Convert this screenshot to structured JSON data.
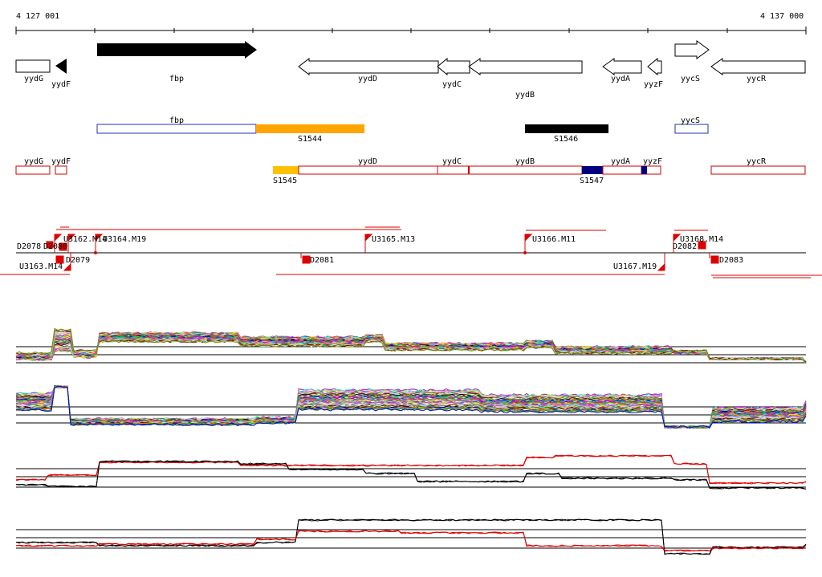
{
  "ruler": {
    "start_label": "4 127 001",
    "end_label": "4 137 000"
  },
  "genes": [
    {
      "label": "yydG",
      "dir": "left"
    },
    {
      "label": "yydF",
      "dir": "left"
    },
    {
      "label": "fbp",
      "dir": "right"
    },
    {
      "label": "yydD",
      "dir": "left"
    },
    {
      "label": "yydC",
      "dir": "left"
    },
    {
      "label": "yydB",
      "dir": "left"
    },
    {
      "label": "yydA",
      "dir": "left"
    },
    {
      "label": "yyzF",
      "dir": "left"
    },
    {
      "label": "yycS",
      "dir": "right"
    },
    {
      "label": "yycR",
      "dir": "left"
    }
  ],
  "forward_segments": [
    {
      "label": "fbp",
      "color": "#2233aa"
    },
    {
      "label": "S1544",
      "color": "#ffa500"
    },
    {
      "label": "S1546",
      "color": "#000000"
    },
    {
      "label": "yycS",
      "color": "#2233aa"
    }
  ],
  "reverse_segments": [
    {
      "label": "yydG",
      "color": "#cc0000"
    },
    {
      "label": "yydF",
      "color": "#cc0000"
    },
    {
      "label": "S1545",
      "color": "#ffc000"
    },
    {
      "label": "yydD",
      "color": "#cc0000"
    },
    {
      "label": "yydC",
      "color": "#cc0000"
    },
    {
      "label": "yydB",
      "color": "#cc0000"
    },
    {
      "label": "S1547",
      "color": "#000080"
    },
    {
      "label": "yydA",
      "color": "#cc0000"
    },
    {
      "label": "yyzF",
      "color": "#cc0000"
    },
    {
      "label": "yycR",
      "color": "#cc0000"
    }
  ],
  "upper_promoters": [
    "D2078",
    "D2080",
    "U3162.M14",
    "U3164.M19",
    "U3165.M13",
    "U3166.M11",
    "D2082",
    "U3168.M14"
  ],
  "lower_promoters": [
    "U3163.M14",
    "D2079",
    "D2081",
    "U3167.M19",
    "D2083"
  ],
  "colors": {
    "red": "#dd0000",
    "black": "#000000",
    "orange": "#ffa500"
  }
}
